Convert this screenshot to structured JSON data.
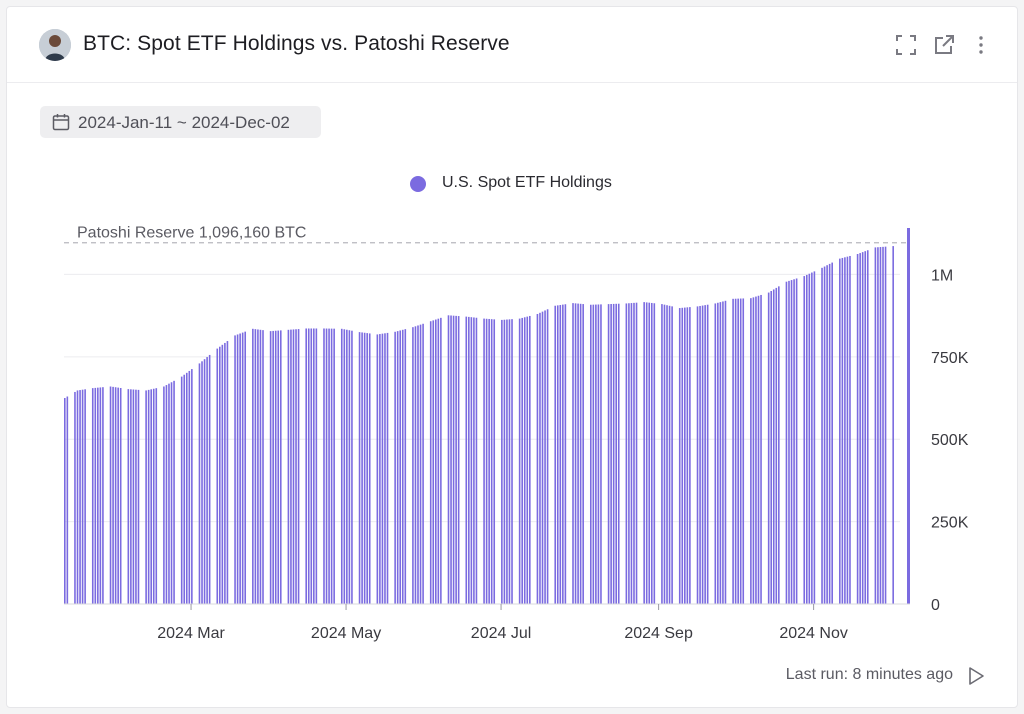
{
  "header": {
    "title": "BTC: Spot ETF Holdings vs. Patoshi Reserve"
  },
  "date_range": "2024-Jan-11 ~ 2024-Dec-02",
  "footer": {
    "last_run": "Last run: 8 minutes ago"
  },
  "colors": {
    "bar": "#7b6be0",
    "reference_line": "#b8b8be",
    "axis_text": "#3a3a40"
  },
  "chart_data": {
    "type": "bar",
    "legend": "U.S. Spot ETF Holdings",
    "legend_position": "top-center",
    "series": [
      {
        "name": "U.S. Spot ETF Holdings",
        "points": [
          [
            "2024-01-11",
            625000
          ],
          [
            "2024-01-16",
            648000
          ],
          [
            "2024-01-22",
            655000
          ],
          [
            "2024-01-29",
            660000
          ],
          [
            "2024-02-05",
            652000
          ],
          [
            "2024-02-12",
            648000
          ],
          [
            "2024-02-19",
            660000
          ],
          [
            "2024-02-26",
            690000
          ],
          [
            "2024-03-04",
            730000
          ],
          [
            "2024-03-11",
            775000
          ],
          [
            "2024-03-18",
            815000
          ],
          [
            "2024-03-25",
            835000
          ],
          [
            "2024-04-01",
            828000
          ],
          [
            "2024-04-08",
            832000
          ],
          [
            "2024-04-15",
            836000
          ],
          [
            "2024-04-22",
            836000
          ],
          [
            "2024-04-29",
            835000
          ],
          [
            "2024-05-06",
            825000
          ],
          [
            "2024-05-13",
            818000
          ],
          [
            "2024-05-20",
            826000
          ],
          [
            "2024-05-27",
            840000
          ],
          [
            "2024-06-03",
            858000
          ],
          [
            "2024-06-10",
            876000
          ],
          [
            "2024-06-17",
            872000
          ],
          [
            "2024-06-24",
            866000
          ],
          [
            "2024-07-01",
            862000
          ],
          [
            "2024-07-08",
            866000
          ],
          [
            "2024-07-15",
            880000
          ],
          [
            "2024-07-22",
            905000
          ],
          [
            "2024-07-29",
            913000
          ],
          [
            "2024-08-05",
            908000
          ],
          [
            "2024-08-12",
            910000
          ],
          [
            "2024-08-19",
            912000
          ],
          [
            "2024-08-26",
            916000
          ],
          [
            "2024-09-02",
            910000
          ],
          [
            "2024-09-09",
            898000
          ],
          [
            "2024-09-16",
            903000
          ],
          [
            "2024-09-23",
            912000
          ],
          [
            "2024-09-30",
            926000
          ],
          [
            "2024-10-07",
            928000
          ],
          [
            "2024-10-14",
            945000
          ],
          [
            "2024-10-21",
            978000
          ],
          [
            "2024-10-28",
            995000
          ],
          [
            "2024-11-04",
            1020000
          ],
          [
            "2024-11-11",
            1048000
          ],
          [
            "2024-11-18",
            1062000
          ],
          [
            "2024-11-25",
            1082000
          ],
          [
            "2024-12-02",
            1086000
          ]
        ]
      }
    ],
    "x_ticks": [
      "2024 Mar",
      "2024 May",
      "2024 Jul",
      "2024 Sep",
      "2024 Nov"
    ],
    "x_tick_dates": [
      "2024-03-01",
      "2024-05-01",
      "2024-07-01",
      "2024-09-01",
      "2024-11-01"
    ],
    "y_ticks": [
      "0",
      "250K",
      "500K",
      "750K",
      "1M"
    ],
    "y_tick_values": [
      0,
      250000,
      500000,
      750000,
      1000000
    ],
    "ylim": [
      0,
      1150000
    ],
    "xlim": [
      "2024-01-11",
      "2024-12-05"
    ],
    "y_axis_side": "right",
    "grid": "horizontal",
    "reference_line": {
      "label": "Patoshi Reserve 1,096,160 BTC",
      "value": 1096160
    }
  }
}
